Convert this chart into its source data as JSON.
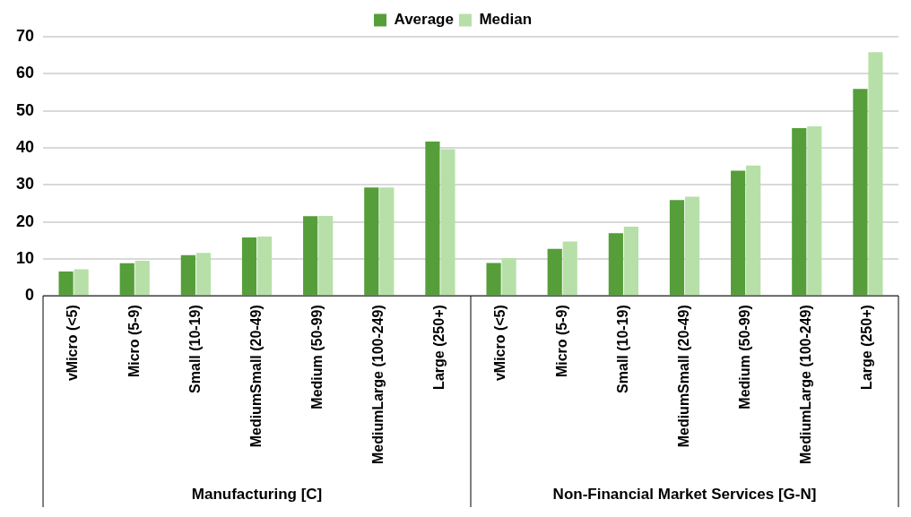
{
  "chart_data": {
    "type": "bar",
    "categories": [
      "vMicro (<5)",
      "Micro (5-9)",
      "Small (10-19)",
      "MediumSmall (20-49)",
      "Medium (50-99)",
      "MediumLarge (100-249)",
      "Large (250+)",
      "vMicro (<5)",
      "Micro (5-9)",
      "Small (10-19)",
      "MediumSmall (20-49)",
      "Medium (50-99)",
      "MediumLarge (100-249)",
      "Large (250+)"
    ],
    "series": [
      {
        "name": "Average",
        "color": "#559e3a",
        "values": [
          6.6,
          8.8,
          11.0,
          15.8,
          21.5,
          29.3,
          41.7,
          8.9,
          12.7,
          16.9,
          25.9,
          33.8,
          45.3,
          55.9
        ]
      },
      {
        "name": "Median",
        "color": "#b7e0a8",
        "values": [
          7.2,
          9.5,
          11.6,
          16.0,
          21.6,
          29.3,
          39.6,
          10.2,
          14.7,
          18.7,
          26.8,
          35.2,
          45.8,
          65.8
        ]
      }
    ],
    "annotations": [
      "Manufacturing [C]",
      "Non-Financial Market Services [G-N]"
    ],
    "ylim": [
      0,
      70
    ],
    "yticks": [
      0,
      10,
      20,
      30,
      40,
      50,
      60,
      70
    ],
    "grid": "y",
    "legend": "top"
  }
}
